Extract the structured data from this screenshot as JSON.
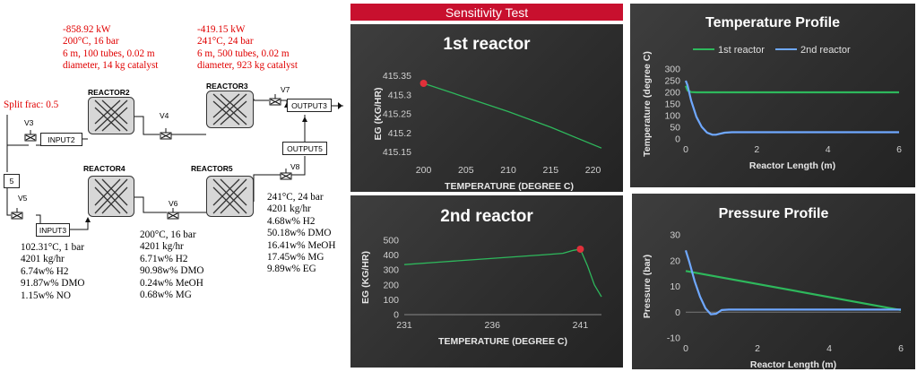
{
  "split_frac": "Split frac: 0.5",
  "reactor2_ann": [
    "-858.92 kW",
    "200°C, 16 bar",
    "6 m, 100 tubes, 0.02 m",
    "diameter, 14 kg catalyst"
  ],
  "reactor3_ann": [
    "-419.15 kW",
    "241°C, 24 bar",
    "6 m, 500 tubes, 0.02 m",
    "diameter, 923 kg catalyst"
  ],
  "input3_ann": [
    "102.31°C, 1 bar",
    "4201 kg/hr",
    "6.74w% H2",
    "91.87w% DMO",
    "1.15w% NO"
  ],
  "v6_ann": [
    "200°C, 16 bar",
    "4201 kg/hr",
    "6.71w% H2",
    "90.98w% DMO",
    "0.24w% MeOH",
    "0.68w% MG"
  ],
  "v8_ann": [
    "241°C, 24 bar",
    "4201 kg/hr",
    "4.68w% H2",
    "50.18w% DMO",
    "16.41w% MeOH",
    "17.45w% MG",
    "9.89w% EG"
  ],
  "flowsheet": {
    "reactor2": "REACTOR2",
    "reactor3": "REACTOR3",
    "reactor4": "REACTOR4",
    "reactor5": "REACTOR5",
    "input2": "INPUT2",
    "input3": "INPUT3",
    "output3": "OUTPUT3",
    "output5": "OUTPUT5",
    "v3": "V3",
    "v4": "V4",
    "v5": "V5",
    "v6": "V6",
    "v7": "V7",
    "v8": "V8",
    "splitter": "5"
  },
  "banner": "Sensitivity Test",
  "colors": {
    "banner": "#c8102e",
    "green": "#2eb85c",
    "blue": "#6fa8ff",
    "marker": "#e0303a",
    "annotation": "#e00000"
  },
  "chart_data": [
    {
      "type": "line",
      "title": "1st reactor",
      "xlabel": "TEMPERATURE (DEGREE C)",
      "ylabel": "EG (KG/HR)",
      "xlim": [
        199.2,
        221
      ],
      "ylim": [
        415.13,
        415.37
      ],
      "xticks": [
        "200",
        "205",
        "210",
        "215",
        "220"
      ],
      "yticks": [
        "415.15",
        "415.2",
        "415.25",
        "415.3",
        "415.35"
      ],
      "series": [
        {
          "x": [
            200,
            205,
            210,
            215,
            221
          ],
          "y": [
            415.33,
            415.293,
            415.256,
            415.215,
            415.16
          ]
        }
      ],
      "highlight": {
        "x": 200,
        "y": 415.33
      }
    },
    {
      "type": "line",
      "title": "2nd reactor",
      "xlabel": "TEMPERATURE (DEGREE C)",
      "ylabel": "EG (KG/HR)",
      "xlim": [
        231,
        242.2
      ],
      "ylim": [
        0,
        500
      ],
      "xticks": [
        "231",
        "236",
        "241"
      ],
      "yticks": [
        "0",
        "100",
        "200",
        "300",
        "400",
        "500"
      ],
      "series": [
        {
          "x": [
            231,
            233,
            235,
            237,
            239,
            240,
            240.6,
            241,
            241.4,
            241.8,
            242.2
          ],
          "y": [
            336,
            353,
            370,
            386,
            403,
            412,
            432,
            440,
            330,
            200,
            120
          ]
        }
      ],
      "highlight": {
        "x": 241,
        "y": 440
      }
    },
    {
      "type": "line",
      "title": "Temperature Profile",
      "xlabel": "Reactor Length (m)",
      "ylabel": "Temperature (degree C)",
      "xlim": [
        0,
        6
      ],
      "ylim": [
        0,
        300
      ],
      "xticks": [
        "0",
        "2",
        "4",
        "6"
      ],
      "yticks": [
        "0",
        "50",
        "100",
        "150",
        "200",
        "250",
        "300"
      ],
      "legend": "top",
      "series": [
        {
          "name": "1st reactor",
          "x": [
            0,
            0.05,
            0.15,
            0.3,
            6
          ],
          "y": [
            228,
            208,
            201,
            200,
            200
          ]
        },
        {
          "name": "2nd reactor",
          "x": [
            0,
            0.05,
            0.15,
            0.3,
            0.45,
            0.6,
            0.75,
            0.85,
            0.95,
            1.1,
            1.3,
            6
          ],
          "y": [
            250,
            230,
            165,
            95,
            52,
            27,
            18,
            18,
            22,
            27,
            29,
            29
          ]
        }
      ]
    },
    {
      "type": "line",
      "title": "Pressure Profile",
      "xlabel": "Reactor Length (m)",
      "ylabel": "Pressure (bar)",
      "xlim": [
        0,
        6
      ],
      "ylim": [
        -10,
        30
      ],
      "xticks": [
        "0",
        "2",
        "4",
        "6"
      ],
      "yticks": [
        "-10",
        "0",
        "10",
        "20",
        "30"
      ],
      "series": [
        {
          "name": "1st reactor",
          "x": [
            0,
            6
          ],
          "y": [
            16,
            0.8
          ]
        },
        {
          "name": "2nd reactor",
          "x": [
            0,
            0.1,
            0.25,
            0.4,
            0.55,
            0.7,
            0.85,
            1.0,
            1.2,
            6
          ],
          "y": [
            24,
            19.5,
            12,
            6,
            1.5,
            -0.8,
            -0.6,
            0.8,
            1,
            1
          ]
        }
      ]
    }
  ]
}
